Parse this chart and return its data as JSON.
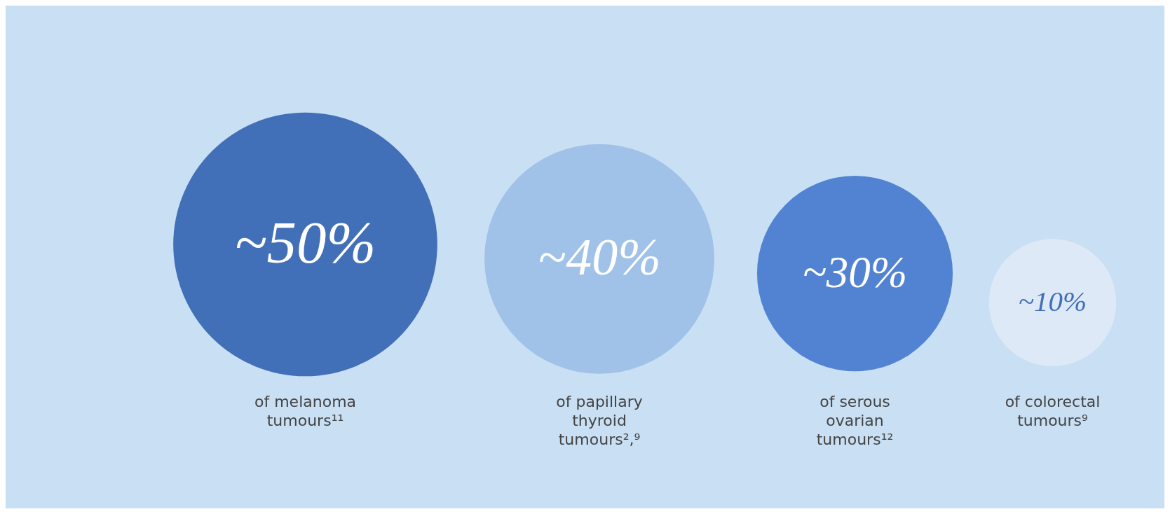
{
  "chart_data": {
    "type": "other",
    "categories": [
      "of melanoma tumours¹¹",
      "of papillary thyroid tumours²,⁹",
      "of serous ovarian tumours¹²",
      "of colorectal tumours⁹"
    ],
    "values": [
      50,
      40,
      30,
      10
    ],
    "value_labels": [
      "~50%",
      "~40%",
      "~30%",
      "~10%"
    ],
    "colors": [
      "#416fb8",
      "#a0c2e8",
      "#5283d3",
      "#dde9f7"
    ]
  }
}
